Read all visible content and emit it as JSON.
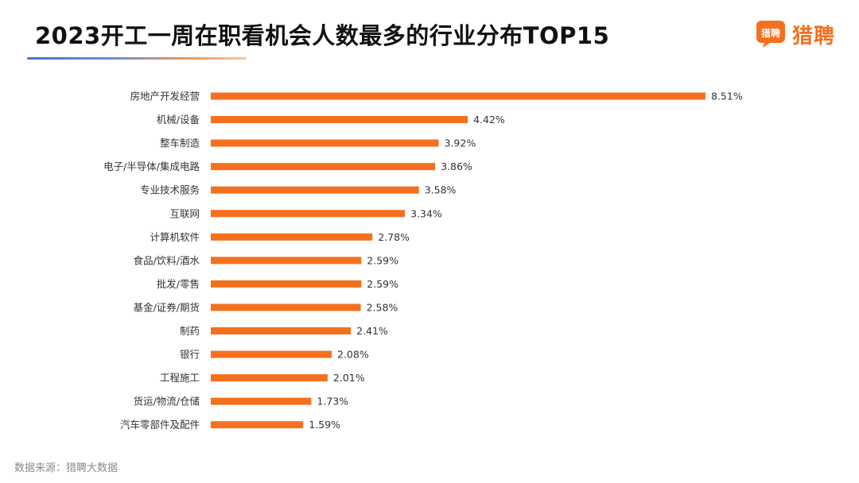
{
  "header": {
    "title": "2023开工一周在职看机会人数最多的行业分布TOP15",
    "logo_icon_text": "猎聘",
    "logo_text": "猎聘",
    "logo_icon": "speech-bubble-icon",
    "accent_color": "#F4701E"
  },
  "chart_data": {
    "type": "bar",
    "orientation": "horizontal",
    "title": "2023开工一周在职看机会人数最多的行业分布TOP15",
    "xlabel": "",
    "ylabel": "",
    "categories": [
      "房地产开发经营",
      "机械/设备",
      "整车制造",
      "电子/半导体/集成电路",
      "专业技术服务",
      "互联网",
      "计算机软件",
      "食品/饮料/酒水",
      "批发/零售",
      "基金/证券/期货",
      "制药",
      "银行",
      "工程施工",
      "货运/物流/仓储",
      "汽车零部件及配件"
    ],
    "values": [
      8.51,
      4.42,
      3.92,
      3.86,
      3.58,
      3.34,
      2.78,
      2.59,
      2.59,
      2.58,
      2.41,
      2.08,
      2.01,
      1.73,
      1.59
    ],
    "data_labels": [
      "8.51%",
      "4.42%",
      "3.92%",
      "3.86%",
      "3.58%",
      "3.34%",
      "2.78%",
      "2.59%",
      "2.59%",
      "2.58%",
      "2.41%",
      "2.08%",
      "2.01%",
      "1.73%",
      "1.59%"
    ],
    "xlim": [
      0,
      8.51
    ],
    "bar_color": "#F4701E",
    "grid": false,
    "legend": "none"
  },
  "footer": {
    "source": "数据来源：猎聘大数据"
  }
}
